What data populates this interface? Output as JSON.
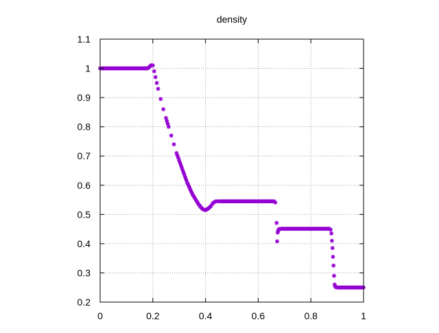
{
  "chart_data": {
    "type": "scatter",
    "title": "density",
    "xlabel": "",
    "ylabel": "",
    "xlim": [
      0,
      1
    ],
    "ylim": [
      0.2,
      1.1
    ],
    "x_ticks": [
      0,
      0.2,
      0.4,
      0.6,
      0.8,
      1
    ],
    "x_tick_labels": [
      "0",
      "0.2",
      "0.4",
      "0.6",
      "0.8",
      "1"
    ],
    "y_ticks": [
      0.2,
      0.3,
      0.4,
      0.5,
      0.6,
      0.7,
      0.8,
      0.9,
      1,
      1.1
    ],
    "y_tick_labels": [
      "0.2",
      "0.3",
      "0.4",
      "0.5",
      "0.6",
      "0.7",
      "0.8",
      "0.9",
      "1",
      "1.1"
    ],
    "grid": true,
    "legend": "none",
    "marker_color": "#9400D3",
    "series": [
      {
        "x": [
          0.0,
          0.01,
          0.02,
          0.03,
          0.04,
          0.05,
          0.06,
          0.07,
          0.08,
          0.09,
          0.1,
          0.11,
          0.12,
          0.13,
          0.14,
          0.15,
          0.16,
          0.17,
          0.18,
          0.185,
          0.19,
          0.195,
          0.2,
          0.205,
          0.21,
          0.215,
          0.22,
          0.23,
          0.24,
          0.25,
          0.26,
          0.27,
          0.28,
          0.29,
          0.3,
          0.31,
          0.32,
          0.33,
          0.34,
          0.35,
          0.36,
          0.37,
          0.38,
          0.39,
          0.4,
          0.41,
          0.42,
          0.425,
          0.43,
          0.435,
          0.44,
          0.445,
          0.45,
          0.455,
          0.46,
          0.47,
          0.48,
          0.49,
          0.5,
          0.51,
          0.52,
          0.53,
          0.54,
          0.55,
          0.56,
          0.57,
          0.58,
          0.59,
          0.6,
          0.61,
          0.62,
          0.63,
          0.64,
          0.65,
          0.66,
          0.665,
          0.67,
          0.672,
          0.674,
          0.676,
          0.678,
          0.68,
          0.685,
          0.69,
          0.7,
          0.71,
          0.72,
          0.73,
          0.74,
          0.75,
          0.76,
          0.77,
          0.78,
          0.79,
          0.8,
          0.81,
          0.82,
          0.83,
          0.84,
          0.85,
          0.86,
          0.87,
          0.875,
          0.878,
          0.88,
          0.882,
          0.884,
          0.886,
          0.888,
          0.89,
          0.892,
          0.895,
          0.9,
          0.91,
          0.92,
          0.93,
          0.94,
          0.95,
          0.96,
          0.97,
          0.98,
          0.99,
          1.0
        ],
        "y": [
          1.0,
          1.0,
          1.0,
          1.0,
          1.0,
          1.0,
          1.0,
          1.0,
          1.0,
          1.0,
          1.0,
          1.0,
          1.0,
          1.0,
          1.0,
          1.0,
          1.0,
          1.0,
          1.0,
          1.003,
          1.008,
          1.011,
          1.01,
          0.99,
          0.97,
          0.95,
          0.93,
          0.895,
          0.86,
          0.83,
          0.8,
          0.77,
          0.74,
          0.71,
          0.685,
          0.66,
          0.635,
          0.61,
          0.59,
          0.57,
          0.555,
          0.54,
          0.527,
          0.518,
          0.515,
          0.52,
          0.528,
          0.535,
          0.54,
          0.543,
          0.545,
          0.545,
          0.545,
          0.545,
          0.545,
          0.545,
          0.545,
          0.545,
          0.545,
          0.545,
          0.545,
          0.545,
          0.545,
          0.545,
          0.545,
          0.545,
          0.545,
          0.545,
          0.545,
          0.545,
          0.545,
          0.545,
          0.545,
          0.545,
          0.545,
          0.541,
          0.471,
          0.408,
          0.438,
          0.445,
          0.448,
          0.45,
          0.451,
          0.451,
          0.451,
          0.451,
          0.451,
          0.451,
          0.451,
          0.451,
          0.451,
          0.451,
          0.451,
          0.451,
          0.451,
          0.451,
          0.451,
          0.451,
          0.451,
          0.451,
          0.451,
          0.451,
          0.448,
          0.435,
          0.41,
          0.385,
          0.355,
          0.325,
          0.29,
          0.26,
          0.254,
          0.251,
          0.25,
          0.25,
          0.25,
          0.25,
          0.25,
          0.25,
          0.25,
          0.25,
          0.25,
          0.25,
          0.25
        ]
      }
    ]
  }
}
